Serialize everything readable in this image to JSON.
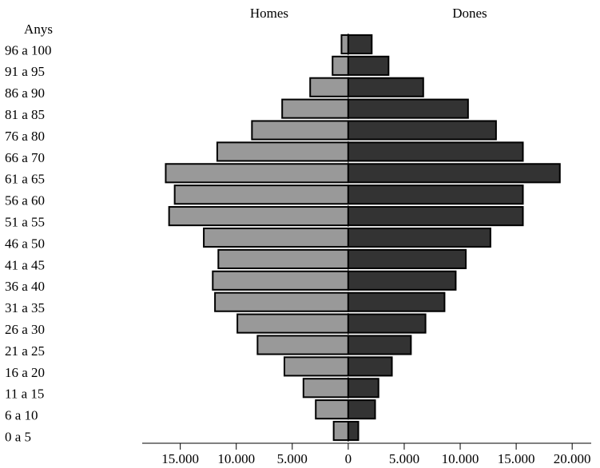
{
  "chart_data": {
    "type": "pyramid",
    "y_label": "Anys",
    "categories": [
      "96 a 100",
      "91 a 95",
      "86 a 90",
      "81 a 85",
      "76 a 80",
      "66 a 70",
      "61 a 65",
      "56 a 60",
      "51 a 55",
      "46 a 50",
      "41 a 45",
      "36 a 40",
      "31 a 35",
      "26 a 30",
      "21 a 25",
      "16 a 20",
      "11 a 15",
      "6 a 10",
      "0 a 5"
    ],
    "series": [
      {
        "name": "Homes",
        "color": "#999999",
        "side": "left",
        "values": [
          600,
          1400,
          3400,
          5900,
          8600,
          11700,
          16300,
          15500,
          16000,
          12900,
          11600,
          12100,
          11900,
          9900,
          8100,
          5700,
          4000,
          2900,
          1300
        ]
      },
      {
        "name": "Dones",
        "color": "#333333",
        "side": "right",
        "values": [
          2100,
          3600,
          6700,
          10700,
          13200,
          15600,
          18900,
          15600,
          15600,
          12700,
          10500,
          9600,
          8600,
          6900,
          5600,
          3900,
          2700,
          2400,
          900
        ]
      }
    ],
    "xlim": [
      -18400,
      21700
    ],
    "xticks": [
      {
        "value": -15000,
        "label": "15.000"
      },
      {
        "value": -10000,
        "label": "10.000"
      },
      {
        "value": -5000,
        "label": "5.000"
      },
      0,
      {
        "value": 5000,
        "label": "5.000"
      },
      {
        "value": 10000,
        "label": "10.000"
      },
      {
        "value": 15000,
        "label": "15.000"
      },
      {
        "value": 20000,
        "label": "20.000"
      }
    ]
  }
}
